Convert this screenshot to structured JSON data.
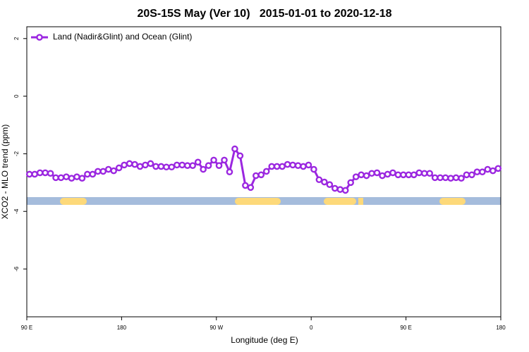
{
  "chart_data": {
    "type": "line",
    "title": "20S-15S May (Ver 10)   2015-01-01 to 2020-12-18",
    "x_label": "Longitude (deg E)",
    "y_label": "XCO2 - MLO trend (ppm)",
    "x": [
      92.5,
      97.5,
      102.5,
      107.5,
      112.5,
      117.5,
      122.5,
      127.5,
      132.5,
      137.5,
      142.5,
      147.5,
      152.5,
      157.5,
      162.5,
      167.5,
      172.5,
      177.5,
      182.5,
      187.5,
      192.5,
      197.5,
      202.5,
      207.5,
      212.5,
      217.5,
      222.5,
      227.5,
      232.5,
      237.5,
      242.5,
      247.5,
      252.5,
      257.5,
      262.5,
      267.5,
      272.5,
      277.5,
      282.5,
      287.5,
      292.5,
      297.5,
      302.5,
      307.5,
      312.5,
      317.5,
      322.5,
      327.5,
      332.5,
      337.5,
      342.5,
      347.5,
      352.5,
      357.5,
      362.5,
      367.5,
      372.5,
      377.5,
      382.5,
      387.5,
      392.5,
      397.5,
      402.5,
      407.5,
      412.5,
      417.5,
      422.5,
      427.5,
      432.5,
      437.5,
      442.5,
      447.5,
      452.5,
      457.5,
      462.5,
      467.5,
      472.5,
      477.5,
      482.5,
      487.5,
      492.5,
      497.5,
      502.5,
      507.5,
      512.5,
      517.5,
      522.5,
      527.5,
      532.5,
      537.5
    ],
    "series": [
      {
        "name": "Land (Nadir&Glint) and Ocean (Glint)",
        "color": "#9b27e0",
        "values": [
          -2.71,
          -2.71,
          -2.66,
          -2.66,
          -2.68,
          -2.83,
          -2.83,
          -2.8,
          -2.85,
          -2.8,
          -2.85,
          -2.71,
          -2.71,
          -2.61,
          -2.61,
          -2.54,
          -2.59,
          -2.49,
          -2.39,
          -2.34,
          -2.37,
          -2.44,
          -2.39,
          -2.34,
          -2.44,
          -2.44,
          -2.46,
          -2.46,
          -2.39,
          -2.39,
          -2.41,
          -2.41,
          -2.29,
          -2.54,
          -2.41,
          -2.22,
          -2.41,
          -2.22,
          -2.63,
          -1.83,
          -2.07,
          -3.1,
          -3.17,
          -2.76,
          -2.73,
          -2.61,
          -2.44,
          -2.44,
          -2.44,
          -2.37,
          -2.39,
          -2.41,
          -2.44,
          -2.39,
          -2.54,
          -2.9,
          -2.98,
          -3.07,
          -3.2,
          -3.24,
          -3.27,
          -3.0,
          -2.8,
          -2.73,
          -2.76,
          -2.68,
          -2.66,
          -2.76,
          -2.71,
          -2.66,
          -2.73,
          -2.73,
          -2.73,
          -2.73,
          -2.66,
          -2.68,
          -2.68,
          -2.83,
          -2.83,
          -2.83,
          -2.85,
          -2.83,
          -2.85,
          -2.73,
          -2.73,
          -2.63,
          -2.63,
          -2.54,
          -2.59,
          -2.51
        ]
      }
    ],
    "xlim": [
      90,
      540
    ],
    "xticks": [
      {
        "value": 90,
        "label": "90 E"
      },
      180,
      {
        "value": 270,
        "label": "90 W"
      },
      {
        "value": 360,
        "label": "0"
      },
      {
        "value": 450,
        "label": "90 E"
      },
      {
        "value": 540,
        "label": "180"
      }
    ],
    "ylim": [
      -7.66,
      2.41
    ],
    "yticks": [
      2,
      0,
      -2,
      -4,
      -6
    ],
    "legend": "top-left"
  }
}
